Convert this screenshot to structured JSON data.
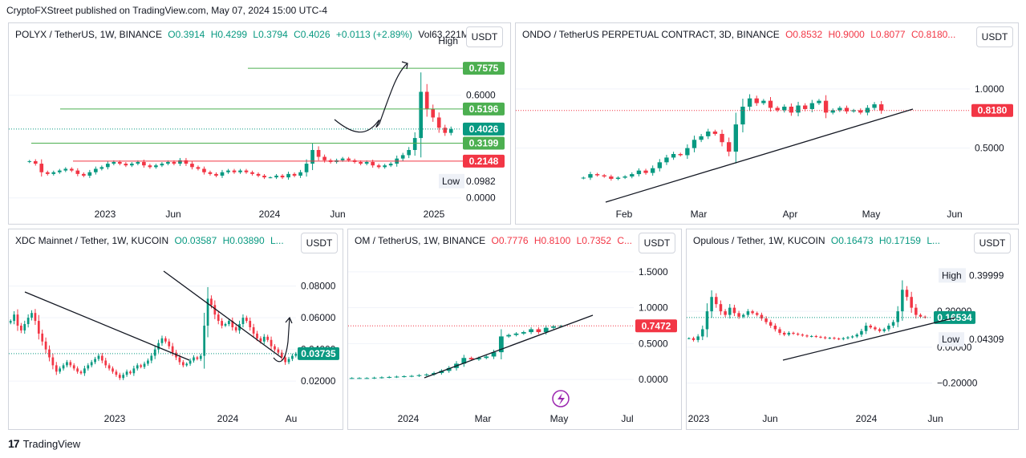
{
  "header": {
    "text": "CryptoFXStreet published on TradingView.com, May 07, 2024 15:00 UTC-4"
  },
  "footer": {
    "logo": "17",
    "brand": "TradingView"
  },
  "colors": {
    "up": "#089981",
    "down": "#f23645",
    "level_green": "#4caf50",
    "level_red": "#f23645",
    "grid": "#f0f3fa"
  },
  "panels": [
    {
      "id": "polyx",
      "legend": {
        "title": "POLYX / TetherUS, 1W, BINANCE",
        "o": "O0.3914",
        "h": "H0.4299",
        "l": "L0.3794",
        "c": "C0.4026",
        "change": "+0.0113 (+2.89%)",
        "vol": "Vol63.221M",
        "trend": "up"
      },
      "currency": "USDT",
      "y_ticks": [
        "0.6000",
        "0.0000"
      ],
      "x_ticks": [
        "2023",
        "Jun",
        "2024",
        "Jun",
        "2025"
      ],
      "levels": [
        {
          "value": "0.7575",
          "type": "green"
        },
        {
          "value": "0.5196",
          "type": "green"
        },
        {
          "value": "0.3199",
          "type": "green"
        },
        {
          "value": "0.2148",
          "type": "red"
        }
      ],
      "price_tag": "0.4026",
      "high_label": "High",
      "low_label": "Low",
      "low_value": "0.0982"
    },
    {
      "id": "ondo",
      "legend": {
        "title": "ONDO / TetherUS PERPETUAL CONTRACT, 3D, BINANCE",
        "o": "O0.8532",
        "h": "H0.9000",
        "l": "L0.8077",
        "c": "C0.8180...",
        "trend": "down"
      },
      "currency": "USDT",
      "y_ticks": [
        "1.0000",
        "0.5000"
      ],
      "x_ticks": [
        "Feb",
        "Mar",
        "Apr",
        "May",
        "Jun"
      ],
      "price_tag": "0.8180"
    },
    {
      "id": "xdc",
      "legend": {
        "title": "XDC Mainnet / Tether, 1W, KUCOIN",
        "o": "O0.03587",
        "h": "H0.03890",
        "l": "L...",
        "trend": "up"
      },
      "currency": "USDT",
      "y_ticks": [
        "0.08000",
        "0.06000",
        "0.04000",
        "0.02000"
      ],
      "x_ticks": [
        "2023",
        "2024",
        "Au"
      ],
      "price_tag": "0.03735"
    },
    {
      "id": "om",
      "legend": {
        "title": "OM / TetherUS, 1W, BINANCE",
        "o": "O0.7776",
        "h": "H0.8100",
        "l": "L0.7352",
        "c": "C...",
        "trend": "down"
      },
      "currency": "USDT",
      "y_ticks": [
        "1.5000",
        "1.0000",
        "0.5000",
        "0.0000"
      ],
      "x_ticks": [
        "2024",
        "Mar",
        "May",
        "Jul"
      ],
      "price_tag": "0.7472"
    },
    {
      "id": "opulous",
      "legend": {
        "title": "Opulous / Tether, 1W, KUCOIN",
        "o": "O0.16473",
        "h": "H0.17159",
        "l": "L...",
        "trend": "up"
      },
      "currency": "USDT",
      "y_ticks": [
        "0.20000",
        "0.00000",
        "−0.20000"
      ],
      "x_ticks": [
        "2023",
        "Jun",
        "2024",
        "Jun"
      ],
      "price_tag": "0.16534",
      "high_label": "High",
      "high_value": "0.39999",
      "low_label": "Low",
      "low_value": "0.04309"
    }
  ],
  "chart_data": [
    {
      "type": "candlestick",
      "title": "POLYX / TetherUS, 1W, BINANCE",
      "ylim": [
        -0.02,
        0.88
      ],
      "x_ticks": [
        "2023",
        "Jun",
        "2024",
        "Jun",
        "2025"
      ],
      "close_series": [
        0.2148,
        0.2,
        0.15,
        0.14,
        0.15,
        0.16,
        0.17,
        0.16,
        0.14,
        0.13,
        0.15,
        0.17,
        0.18,
        0.2,
        0.21,
        0.2,
        0.19,
        0.2,
        0.21,
        0.19,
        0.18,
        0.19,
        0.2,
        0.21,
        0.2,
        0.22,
        0.2,
        0.18,
        0.17,
        0.15,
        0.14,
        0.13,
        0.15,
        0.16,
        0.15,
        0.16,
        0.15,
        0.14,
        0.13,
        0.12,
        0.12,
        0.13,
        0.12,
        0.14,
        0.13,
        0.15,
        0.2,
        0.28,
        0.24,
        0.22,
        0.21,
        0.22,
        0.23,
        0.22,
        0.21,
        0.2,
        0.21,
        0.19,
        0.18,
        0.19,
        0.2,
        0.23,
        0.25,
        0.28,
        0.35,
        0.62,
        0.52,
        0.47,
        0.41,
        0.38,
        0.4026
      ],
      "levels": [
        0.7575,
        0.5196,
        0.3199,
        0.2148
      ],
      "last": 0.4026,
      "low": 0.0982
    },
    {
      "type": "candlestick",
      "title": "ONDO / TetherUS PERPETUAL CONTRACT, 3D, BINANCE",
      "ylim": [
        0.05,
        1.25
      ],
      "x_ticks": [
        "Feb",
        "Mar",
        "Apr",
        "May",
        "Jun"
      ],
      "close_series": [
        0.25,
        0.28,
        0.27,
        0.26,
        0.24,
        0.25,
        0.26,
        0.28,
        0.31,
        0.29,
        0.33,
        0.38,
        0.42,
        0.45,
        0.44,
        0.5,
        0.57,
        0.6,
        0.64,
        0.62,
        0.55,
        0.47,
        0.7,
        0.85,
        0.92,
        0.88,
        0.9,
        0.84,
        0.82,
        0.85,
        0.8,
        0.86,
        0.83,
        0.88,
        0.9,
        0.8,
        0.82,
        0.84,
        0.81,
        0.82,
        0.8,
        0.84,
        0.87,
        0.818
      ],
      "last": 0.818
    },
    {
      "type": "candlestick",
      "title": "XDC Mainnet / Tether, 1W, KUCOIN",
      "ylim": [
        0.012,
        0.098
      ],
      "x_ticks": [
        "2023",
        "2024",
        "Au"
      ],
      "close_series": [
        0.058,
        0.062,
        0.055,
        0.052,
        0.056,
        0.06,
        0.063,
        0.058,
        0.05,
        0.045,
        0.04,
        0.035,
        0.03,
        0.026,
        0.028,
        0.03,
        0.032,
        0.03,
        0.028,
        0.026,
        0.025,
        0.028,
        0.03,
        0.032,
        0.034,
        0.036,
        0.033,
        0.03,
        0.028,
        0.026,
        0.024,
        0.022,
        0.024,
        0.026,
        0.025,
        0.028,
        0.03,
        0.029,
        0.031,
        0.033,
        0.036,
        0.04,
        0.044,
        0.047,
        0.045,
        0.042,
        0.038,
        0.035,
        0.032,
        0.03,
        0.031,
        0.033,
        0.035,
        0.034,
        0.036,
        0.055,
        0.072,
        0.068,
        0.062,
        0.058,
        0.055,
        0.056,
        0.058,
        0.054,
        0.052,
        0.056,
        0.06,
        0.058,
        0.054,
        0.05,
        0.047,
        0.045,
        0.048,
        0.046,
        0.042,
        0.04,
        0.038,
        0.035,
        0.032,
        0.034,
        0.036,
        0.03735
      ],
      "last": 0.03735
    },
    {
      "type": "candlestick",
      "title": "OM / TetherUS, 1W, BINANCE",
      "ylim": [
        -0.2,
        1.7
      ],
      "x_ticks": [
        "2024",
        "Mar",
        "May",
        "Jul"
      ],
      "close_series": [
        0.02,
        0.02,
        0.02,
        0.025,
        0.03,
        0.035,
        0.04,
        0.045,
        0.05,
        0.06,
        0.07,
        0.09,
        0.12,
        0.16,
        0.22,
        0.3,
        0.28,
        0.3,
        0.32,
        0.38,
        0.6,
        0.62,
        0.64,
        0.66,
        0.7,
        0.66,
        0.72,
        0.74,
        0.7472
      ],
      "last": 0.7472
    },
    {
      "type": "candlestick",
      "title": "Opulous / Tether, 1W, KUCOIN",
      "ylim": [
        -0.26,
        0.5
      ],
      "x_ticks": [
        "2023",
        "Jun",
        "2024",
        "Jun"
      ],
      "close_series": [
        0.05,
        0.04,
        0.06,
        0.1,
        0.2,
        0.28,
        0.24,
        0.2,
        0.18,
        0.22,
        0.19,
        0.17,
        0.18,
        0.2,
        0.19,
        0.18,
        0.16,
        0.14,
        0.12,
        0.1,
        0.08,
        0.07,
        0.08,
        0.075,
        0.07,
        0.065,
        0.06,
        0.062,
        0.058,
        0.055,
        0.05,
        0.052,
        0.048,
        0.045,
        0.05,
        0.055,
        0.06,
        0.07,
        0.09,
        0.12,
        0.11,
        0.1,
        0.09,
        0.1,
        0.12,
        0.14,
        0.2,
        0.32,
        0.28,
        0.22,
        0.18,
        0.17,
        0.16534
      ],
      "last": 0.16534,
      "high": 0.39999,
      "low": 0.04309
    }
  ]
}
